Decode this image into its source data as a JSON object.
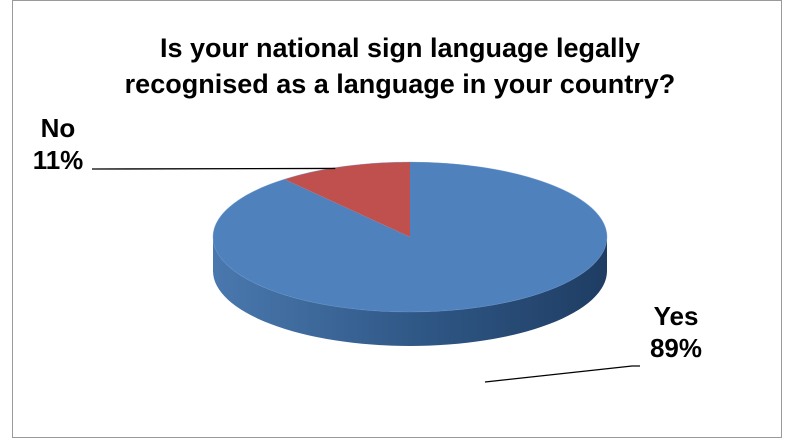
{
  "chart_data": {
    "type": "pie",
    "title": "Is your national sign language legally recognised as a language in your country?",
    "title_line1": "Is your national sign language legally",
    "title_line2": "recognised as a language in your country?",
    "categories": [
      "Yes",
      "No"
    ],
    "values": [
      89,
      11
    ],
    "labels": [
      {
        "name": "Yes",
        "percent": "89%"
      },
      {
        "name": "No",
        "percent": "11%"
      }
    ],
    "colors": {
      "Yes": "#4f81bd",
      "No": "#c0504d",
      "yes_side": "#2f5a8c",
      "no_side": "#8c3431"
    },
    "style": "3d",
    "legend": "none"
  }
}
